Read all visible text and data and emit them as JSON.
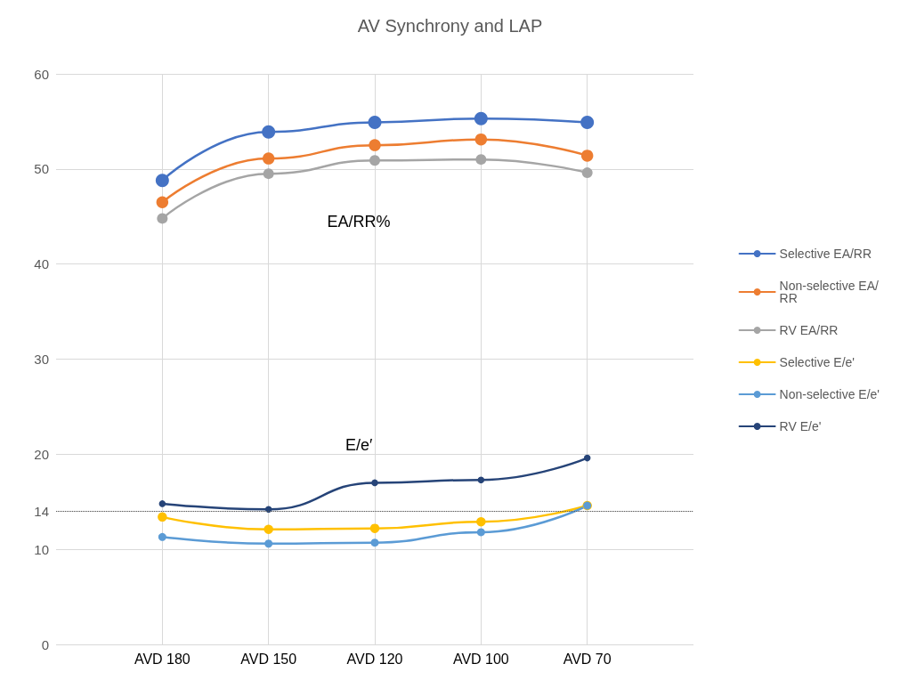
{
  "chart_data": {
    "type": "line",
    "title": "AV Synchrony and LAP",
    "categories": [
      "AVD 180",
      "AVD 150",
      "AVD 120",
      "AVD 100",
      "AVD 70"
    ],
    "series": [
      {
        "name": "Selective EA/RR",
        "color": "#4472c4",
        "values": [
          48.8,
          53.9,
          54.9,
          55.3,
          54.9
        ]
      },
      {
        "name": "Non-selective EA/RR",
        "color": "#ed7d31",
        "values": [
          46.5,
          51.1,
          52.5,
          53.1,
          51.4
        ]
      },
      {
        "name": "RV EA/RR",
        "color": "#a5a5a5",
        "values": [
          44.8,
          49.5,
          50.9,
          51.0,
          49.6
        ]
      },
      {
        "name": "Selective E/e'",
        "color": "#ffc000",
        "values": [
          13.4,
          12.1,
          12.2,
          12.9,
          14.6
        ]
      },
      {
        "name": "Non-selective E/e'",
        "color": "#5b9bd5",
        "values": [
          11.3,
          10.6,
          10.7,
          11.8,
          14.6
        ]
      },
      {
        "name": "RV E/e'",
        "color": "#264478",
        "values": [
          14.8,
          14.2,
          17.0,
          17.3,
          19.6
        ]
      }
    ],
    "ylim": [
      0,
      60
    ],
    "yticks": [
      0,
      10,
      14,
      20,
      30,
      40,
      50,
      60
    ],
    "ref_lines": [
      {
        "axis": "y",
        "value": 14,
        "color": "#595959",
        "line_style": "dotted"
      }
    ],
    "annotations": [
      "EA/RR%",
      "E/e′"
    ],
    "grid": true,
    "legend": "right",
    "marker": "circle",
    "line_style": "solid"
  }
}
